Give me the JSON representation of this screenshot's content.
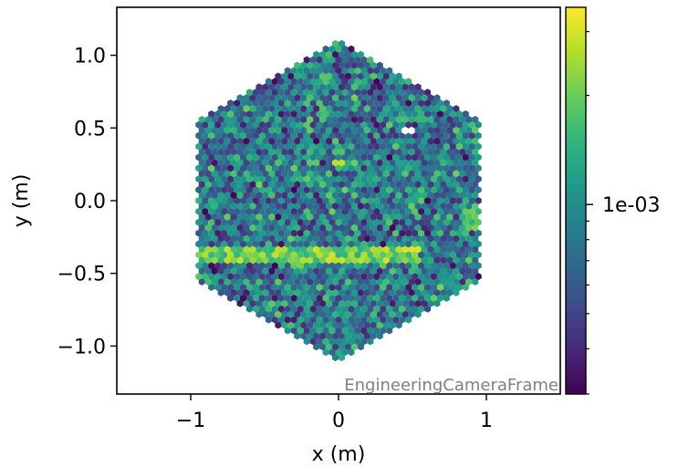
{
  "chart_data": {
    "type": "heatmap",
    "title": "",
    "xlabel": "x  (m)",
    "ylabel": "y  (m)",
    "xlim": [
      -1.5,
      1.5
    ],
    "ylim": [
      -1.33,
      1.33
    ],
    "xticks": [
      -1,
      0,
      1
    ],
    "xtick_labels": [
      "−1",
      "0",
      "1"
    ],
    "yticks": [
      1.0,
      0.5,
      0.0,
      -0.5,
      -1.0
    ],
    "ytick_labels": [
      "1.0",
      "0.5",
      "0.0",
      "−0.5",
      "−1.0"
    ],
    "camera_shape": "hexagon",
    "camera_radius_m": 1.1,
    "pixel_pitch_m": 0.043,
    "colormap": "viridis",
    "color_scale": "log",
    "colorbar_tick_label": "1e-03",
    "colorbar_tick_value": 0.001,
    "colorbar_range_approx": [
      0.0003,
      0.0035
    ],
    "annotation": "EngineeringCameraFrame",
    "features": [
      {
        "kind": "horizontal bright band",
        "y_m": -0.38,
        "x_range_m": [
          -1.1,
          0.55
        ]
      },
      {
        "kind": "bright spot",
        "x_m": 0.92,
        "y_m": -0.13
      },
      {
        "kind": "bright pixel",
        "x_m": 0.0,
        "y_m": 0.26
      },
      {
        "kind": "saturated pixel",
        "x_m": 1.02,
        "y_m": 0.51
      },
      {
        "kind": "masked (white) pixel",
        "x_m": 0.47,
        "y_m": 0.48
      }
    ],
    "grid": false,
    "legend": "none"
  },
  "colors": {
    "viridis": [
      "#440154",
      "#482878",
      "#3e4989",
      "#31688e",
      "#26828e",
      "#1f9e89",
      "#35b779",
      "#6ece58",
      "#b5de2b",
      "#fde725"
    ]
  }
}
